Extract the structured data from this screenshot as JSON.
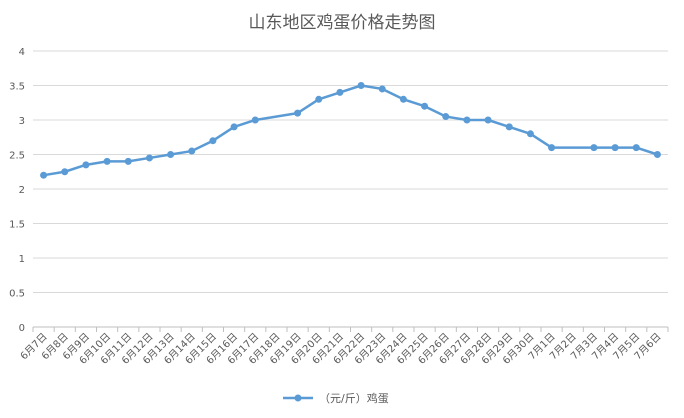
{
  "chart_data": {
    "type": "line",
    "title": "山东地区鸡蛋价格走势图",
    "xlabel": "",
    "ylabel": "",
    "ylim": [
      0,
      4
    ],
    "yticks": [
      "0",
      "0.5",
      "1",
      "1.5",
      "2",
      "2.5",
      "3",
      "3.5",
      "4"
    ],
    "grid": true,
    "legend_position": "bottom",
    "colors": {
      "series": "#5b9bd5",
      "grid": "#d9d9d9",
      "text": "#595959"
    },
    "categories": [
      "6月7日",
      "6月8日",
      "6月9日",
      "6月10日",
      "6月11日",
      "6月12日",
      "6月13日",
      "6月14日",
      "6月15日",
      "6月16日",
      "6月17日",
      "6月18日",
      "6月19日",
      "6月20日",
      "6月21日",
      "6月22日",
      "6月23日",
      "6月24日",
      "6月25日",
      "6月26日",
      "6月27日",
      "6月28日",
      "6月29日",
      "6月30日",
      "7月1日",
      "7月2日",
      "7月3日",
      "7月4日",
      "7月5日",
      "7月6日"
    ],
    "series": [
      {
        "name": "（元/斤）鸡蛋",
        "values": [
          2.2,
          2.25,
          2.35,
          2.4,
          2.4,
          2.45,
          2.5,
          2.55,
          2.7,
          2.9,
          3.0,
          null,
          3.1,
          3.3,
          3.4,
          3.5,
          3.45,
          3.3,
          3.2,
          3.05,
          3.0,
          3.0,
          2.9,
          2.8,
          2.6,
          null,
          2.6,
          2.6,
          2.6,
          2.5
        ]
      }
    ]
  }
}
